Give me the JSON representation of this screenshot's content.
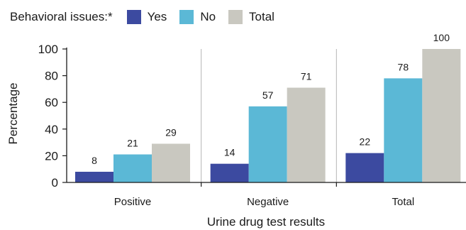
{
  "legend": {
    "title": "Behavioral issues:*",
    "items": [
      {
        "label": "Yes",
        "color": "#3c4aa0"
      },
      {
        "label": "No",
        "color": "#5bb8d6"
      },
      {
        "label": "Total",
        "color": "#c9c8c0"
      }
    ]
  },
  "chart_data": {
    "type": "bar",
    "categories": [
      "Positive",
      "Negative",
      "Total"
    ],
    "series": [
      {
        "name": "Yes",
        "values": [
          8,
          14,
          22
        ],
        "color": "#3c4aa0"
      },
      {
        "name": "No",
        "values": [
          21,
          57,
          78
        ],
        "color": "#5bb8d6"
      },
      {
        "name": "Total",
        "values": [
          29,
          71,
          100
        ],
        "color": "#c9c8c0"
      }
    ],
    "xlabel": "Urine drug test results",
    "ylabel": "Percentage",
    "ylim": [
      0,
      100
    ],
    "yticks": [
      0,
      20,
      40,
      60,
      80,
      100
    ],
    "grid": false,
    "legend_position": "top-left"
  }
}
